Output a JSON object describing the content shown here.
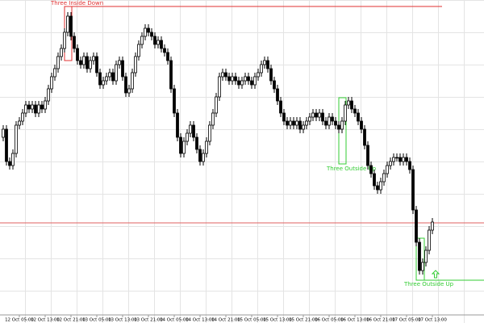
{
  "chart_data": {
    "type": "candlestick",
    "categories": [
      null,
      null,
      null,
      null,
      null,
      "12 Oct 05:00",
      null,
      null,
      null,
      null,
      null,
      null,
      null,
      "12 Oct 13:00",
      null,
      null,
      null,
      null,
      null,
      null,
      null,
      "12 Oct 21:00",
      null,
      null,
      null,
      null,
      null,
      null,
      null,
      "13 Oct 05:00",
      null,
      null,
      null,
      null,
      null,
      null,
      null,
      "13 Oct 13:00",
      null,
      null,
      null,
      null,
      null,
      null,
      null,
      "13 Oct 21:00",
      null,
      null,
      null,
      null,
      null,
      null,
      null,
      "14 Oct 05:00",
      null,
      null,
      null,
      null,
      null,
      null,
      null,
      "14 Oct 13:00",
      null,
      null,
      null,
      null,
      null,
      null,
      null,
      "14 Oct 21:00",
      null,
      null,
      null,
      null,
      null,
      null,
      null,
      "15 Oct 05:00",
      null,
      null,
      null,
      null,
      null,
      null,
      null,
      "15 Oct 13:00",
      null,
      null,
      null,
      null,
      null,
      null,
      null,
      "15 Oct 21:00",
      null,
      null,
      null,
      null,
      null,
      null,
      null,
      "16 Oct 05:00",
      null,
      null,
      null,
      null,
      null,
      null,
      null,
      "16 Oct 13:00",
      null,
      null,
      null,
      null,
      null,
      null,
      null,
      "16 Oct 21:00",
      null,
      null,
      null,
      null,
      null,
      null,
      null,
      "17 Oct 05:00",
      null,
      null,
      null,
      null,
      null,
      null,
      null,
      "17 Oct 13:00"
    ],
    "open": [
      220,
      230,
      190,
      185,
      200,
      235,
      240,
      250,
      260,
      255,
      260,
      250,
      260,
      255,
      265,
      280,
      295,
      305,
      320,
      330,
      350,
      370,
      345,
      330,
      315,
      310,
      320,
      305,
      315,
      320,
      300,
      285,
      290,
      295,
      300,
      290,
      310,
      315,
      295,
      275,
      280,
      300,
      320,
      335,
      345,
      355,
      350,
      345,
      335,
      340,
      330,
      325,
      315,
      280,
      250,
      220,
      200,
      215,
      225,
      235,
      220,
      205,
      190,
      200,
      215,
      235,
      250,
      270,
      295,
      300,
      295,
      290,
      295,
      290,
      285,
      290,
      295,
      290,
      285,
      295,
      300,
      310,
      315,
      305,
      290,
      280,
      265,
      250,
      240,
      235,
      240,
      235,
      240,
      230,
      235,
      240,
      245,
      250,
      245,
      250,
      240,
      235,
      245,
      240,
      235,
      230,
      240,
      260,
      265,
      255,
      250,
      240,
      230,
      210,
      185,
      175,
      160,
      155,
      165,
      175,
      185,
      190,
      195,
      195,
      190,
      195,
      190,
      180,
      130,
      90,
      55,
      65,
      80,
      105
    ],
    "high": [
      235,
      235,
      195,
      205,
      240,
      245,
      255,
      265,
      265,
      265,
      265,
      265,
      265,
      270,
      285,
      300,
      310,
      325,
      335,
      355,
      375,
      375,
      350,
      335,
      320,
      325,
      325,
      320,
      325,
      325,
      305,
      295,
      300,
      305,
      305,
      315,
      320,
      320,
      300,
      285,
      305,
      325,
      340,
      350,
      360,
      360,
      355,
      350,
      345,
      345,
      335,
      330,
      320,
      285,
      255,
      225,
      220,
      230,
      240,
      240,
      225,
      210,
      205,
      220,
      240,
      255,
      275,
      300,
      305,
      305,
      300,
      300,
      300,
      295,
      295,
      300,
      300,
      295,
      300,
      305,
      315,
      320,
      320,
      310,
      295,
      285,
      270,
      255,
      245,
      245,
      245,
      245,
      245,
      240,
      245,
      250,
      255,
      255,
      255,
      255,
      245,
      250,
      250,
      245,
      240,
      245,
      265,
      270,
      270,
      260,
      255,
      245,
      235,
      215,
      190,
      180,
      165,
      170,
      180,
      190,
      195,
      200,
      200,
      200,
      200,
      200,
      195,
      185,
      135,
      95,
      70,
      85,
      110,
      120
    ],
    "low": [
      215,
      185,
      180,
      180,
      195,
      230,
      235,
      245,
      250,
      250,
      245,
      245,
      250,
      250,
      260,
      275,
      290,
      300,
      315,
      325,
      345,
      340,
      325,
      310,
      305,
      305,
      300,
      300,
      310,
      295,
      280,
      280,
      285,
      290,
      285,
      285,
      305,
      290,
      270,
      270,
      275,
      295,
      315,
      330,
      340,
      345,
      340,
      330,
      330,
      325,
      320,
      310,
      275,
      245,
      215,
      195,
      195,
      210,
      220,
      215,
      200,
      185,
      185,
      195,
      210,
      230,
      245,
      265,
      290,
      290,
      285,
      285,
      285,
      280,
      280,
      285,
      285,
      280,
      280,
      290,
      295,
      305,
      300,
      285,
      275,
      260,
      245,
      235,
      230,
      230,
      230,
      230,
      225,
      225,
      230,
      235,
      240,
      240,
      240,
      235,
      230,
      230,
      235,
      230,
      225,
      225,
      235,
      255,
      250,
      245,
      235,
      225,
      205,
      180,
      170,
      155,
      150,
      150,
      160,
      170,
      180,
      185,
      190,
      185,
      185,
      185,
      175,
      125,
      85,
      50,
      50,
      60,
      75,
      100
    ],
    "close": [
      230,
      190,
      185,
      200,
      235,
      240,
      250,
      260,
      255,
      260,
      250,
      260,
      255,
      265,
      280,
      295,
      305,
      320,
      330,
      350,
      370,
      345,
      330,
      315,
      310,
      320,
      305,
      315,
      320,
      300,
      285,
      290,
      295,
      300,
      290,
      310,
      315,
      295,
      275,
      280,
      300,
      320,
      335,
      345,
      355,
      350,
      345,
      335,
      340,
      330,
      325,
      315,
      280,
      250,
      220,
      200,
      215,
      225,
      235,
      220,
      205,
      190,
      200,
      215,
      235,
      250,
      270,
      295,
      300,
      295,
      290,
      295,
      290,
      285,
      290,
      295,
      290,
      285,
      295,
      300,
      310,
      315,
      305,
      290,
      280,
      265,
      250,
      240,
      235,
      240,
      235,
      240,
      230,
      235,
      240,
      245,
      250,
      245,
      250,
      240,
      235,
      245,
      240,
      235,
      230,
      240,
      260,
      265,
      255,
      250,
      240,
      230,
      210,
      185,
      175,
      160,
      155,
      165,
      175,
      185,
      190,
      195,
      195,
      190,
      195,
      190,
      180,
      130,
      90,
      55,
      65,
      80,
      105,
      115
    ],
    "ylim": [
      0,
      390
    ],
    "up_color": "#ffffff",
    "down_color": "#000000",
    "edge_color": "#000000",
    "grid": true,
    "annotations": [
      {
        "text": "Three Inside Down",
        "color": "#e03030"
      },
      {
        "text": "Three Outside Up",
        "color": "#33cc33"
      },
      {
        "text": "Three Outside Up",
        "color": "#33cc33"
      }
    ]
  }
}
